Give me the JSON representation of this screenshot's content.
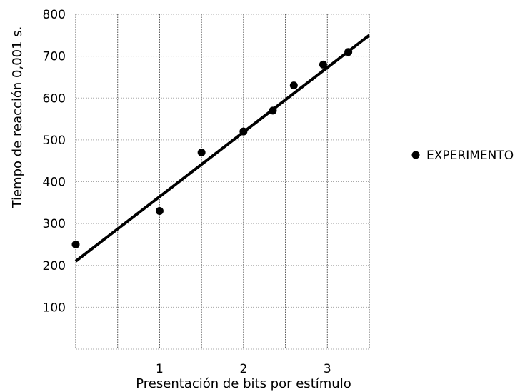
{
  "chart_data": {
    "type": "scatter",
    "xlabel": "Presentación de bits por estímulo",
    "ylabel": "Tiempo de reacción 0,001 s.",
    "xlim": [
      0,
      3.5
    ],
    "ylim": [
      0,
      800
    ],
    "x_ticks": [
      1,
      2,
      3
    ],
    "y_ticks": [
      100,
      200,
      300,
      400,
      500,
      600,
      700,
      800
    ],
    "grid": true,
    "legend_position": "right",
    "series": [
      {
        "name": "EXPERIMENTO",
        "x": [
          0.0,
          1.0,
          1.5,
          2.0,
          2.35,
          2.6,
          2.95,
          3.25
        ],
        "y": [
          250,
          330,
          470,
          520,
          570,
          630,
          680,
          710
        ]
      }
    ],
    "fit_line": {
      "x": [
        0.0,
        3.5
      ],
      "y": [
        210,
        750
      ]
    }
  }
}
